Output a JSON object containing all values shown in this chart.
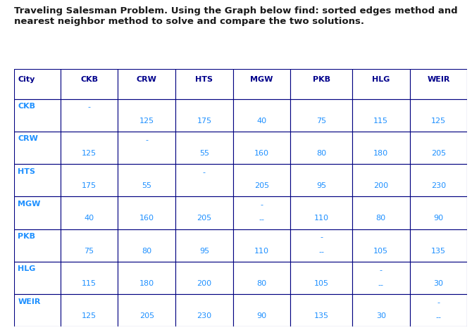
{
  "title_line1": "Traveling Salesman Problem. Using the Graph below find: sorted edges method and",
  "title_line2": "nearest neighbor method to solve and compare the two solutions.",
  "title_fontsize": 9.5,
  "title_color": "#1a1a1a",
  "columns": [
    "City",
    "CKB",
    "CRW",
    "HTS",
    "MGW",
    "PKB",
    "HLG",
    "WEIR"
  ],
  "rows": [
    "CKB",
    "CRW",
    "HTS",
    "MGW",
    "PKB",
    "HLG",
    "WEIR"
  ],
  "header_color": "#00008B",
  "row_label_color": "#1E90FF",
  "cell_text_color": "#1E90FF",
  "background_color": "#ffffff",
  "border_color": "#000080",
  "dist": [
    [
      null,
      125,
      175,
      40,
      75,
      115,
      125
    ],
    [
      125,
      null,
      55,
      160,
      80,
      180,
      205
    ],
    [
      175,
      55,
      null,
      205,
      95,
      200,
      230
    ],
    [
      40,
      160,
      205,
      null,
      110,
      80,
      90
    ],
    [
      75,
      80,
      95,
      110,
      null,
      105,
      135
    ],
    [
      115,
      180,
      200,
      80,
      105,
      null,
      30
    ],
    [
      125,
      205,
      230,
      90,
      135,
      30,
      null
    ]
  ]
}
